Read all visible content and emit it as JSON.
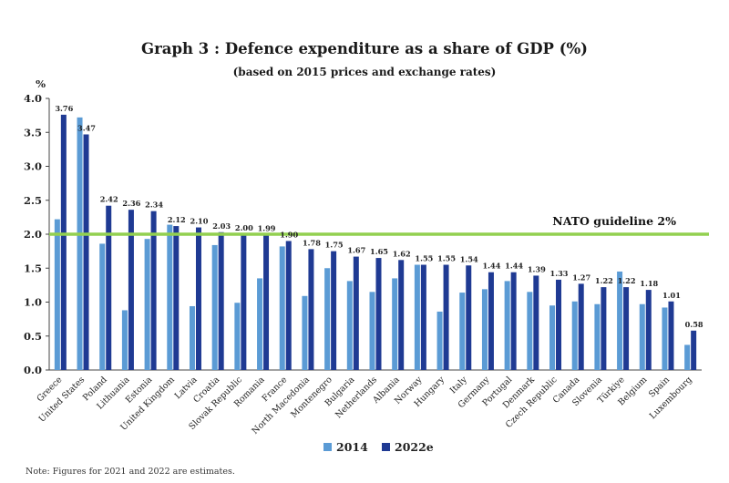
{
  "title": "Graph 3 : Defence expenditure as a share of GDP (%)",
  "subtitle": "(based on 2015 prices and exchange rates)",
  "note": "Note: Figures for 2021 and 2022 are estimates.",
  "colors": {
    "s2014": "#5b9bd5",
    "s2022": "#1f3a93",
    "guide": "#92d050"
  },
  "chart_data": {
    "type": "bar",
    "title": "Graph 3 : Defence expenditure as a share of GDP (%)",
    "subtitle": "(based on 2015 prices and exchange rates)",
    "xlabel": "",
    "ylabel": "%",
    "ylim": [
      0,
      4
    ],
    "yticks": [
      "0.0",
      "0.5",
      "1.0",
      "1.5",
      "2.0",
      "2.5",
      "3.0",
      "3.5",
      "4.0"
    ],
    "grid": false,
    "legend": "bottom-center",
    "categories": [
      "Greece",
      "United States",
      "Poland",
      "Lithuania",
      "Estonia",
      "United Kingdom",
      "Latvia",
      "Croatia",
      "Slovak Republic",
      "Romania",
      "France",
      "North Macedonia",
      "Montenegro",
      "Bulgaria",
      "Netherlands",
      "Albania",
      "Norway",
      "Hungary",
      "Italy",
      "Germany",
      "Portugal",
      "Denmark",
      "Czech Republic",
      "Canada",
      "Slovenia",
      "Türkiye",
      "Belgium",
      "Spain",
      "Luxembourg"
    ],
    "series": [
      {
        "name": "2014",
        "values": [
          2.22,
          3.72,
          1.86,
          0.88,
          1.93,
          2.14,
          0.94,
          1.84,
          0.99,
          1.35,
          1.82,
          1.09,
          1.5,
          1.31,
          1.15,
          1.35,
          1.55,
          0.86,
          1.14,
          1.19,
          1.31,
          1.15,
          0.95,
          1.01,
          0.97,
          1.45,
          0.97,
          0.92,
          0.37
        ]
      },
      {
        "name": "2022e",
        "values": [
          3.76,
          3.47,
          2.42,
          2.36,
          2.34,
          2.12,
          2.1,
          2.03,
          2.0,
          1.99,
          1.9,
          1.78,
          1.75,
          1.67,
          1.65,
          1.62,
          1.55,
          1.55,
          1.54,
          1.44,
          1.44,
          1.39,
          1.33,
          1.27,
          1.22,
          1.22,
          1.18,
          1.01,
          0.58
        ]
      }
    ],
    "data_labels": [
      "3.76",
      "3.47",
      "2.42",
      "2.36",
      "2.34",
      "2.12",
      "2.10",
      "2.03",
      "2.00",
      "1.99",
      "1.90",
      "1.78",
      "1.75",
      "1.67",
      "1.65",
      "1.62",
      "1.55",
      "1.55",
      "1.54",
      "1.44",
      "1.44",
      "1.39",
      "1.33",
      "1.27",
      "1.22",
      "1.22",
      "1.18",
      "1.01",
      "0.58"
    ],
    "guideline": {
      "value": 2.0,
      "label": "NATO guideline 2%"
    }
  }
}
